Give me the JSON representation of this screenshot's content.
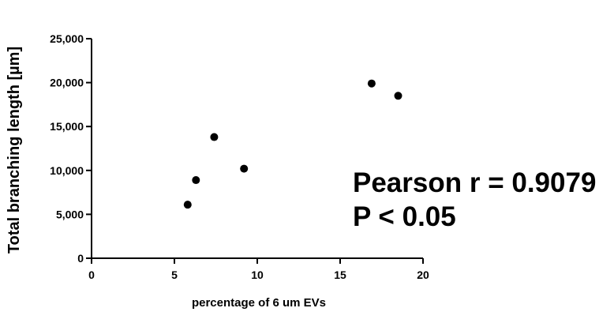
{
  "chart_data": {
    "type": "scatter",
    "title": "",
    "xlabel": "percentage of 6 um EVs",
    "ylabel": "Total branching length [µm]",
    "xlim": [
      0,
      20
    ],
    "ylim": [
      0,
      25000
    ],
    "x_ticks": [
      0,
      5,
      10,
      15,
      20
    ],
    "x_tick_labels": [
      "0",
      "5",
      "10",
      "15",
      "20"
    ],
    "y_ticks": [
      0,
      5000,
      10000,
      15000,
      20000,
      25000
    ],
    "y_tick_labels": [
      "0",
      "5,000",
      "10,000",
      "15,000",
      "20,000",
      "25,000"
    ],
    "grid": false,
    "legend": "none",
    "marker_color": "#000000",
    "series": [
      {
        "points": [
          {
            "x": 5.8,
            "y": 6100
          },
          {
            "x": 6.3,
            "y": 8900
          },
          {
            "x": 7.4,
            "y": 13800
          },
          {
            "x": 9.2,
            "y": 10200
          },
          {
            "x": 16.9,
            "y": 19900
          },
          {
            "x": 18.5,
            "y": 18500
          }
        ]
      }
    ],
    "annotations": [
      "Pearson r = 0.9079",
      "P < 0.05"
    ]
  }
}
